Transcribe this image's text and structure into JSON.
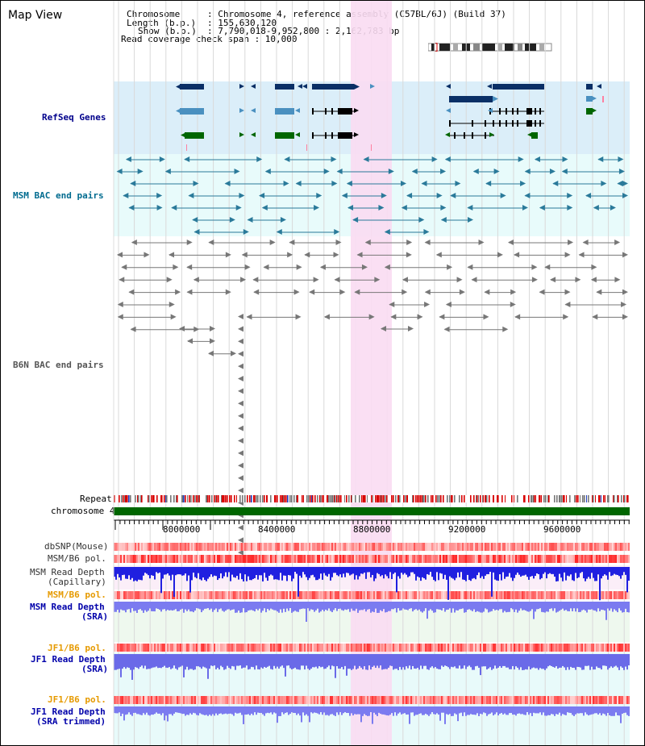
{
  "title": "Map View",
  "header": {
    "chromosome_label": "Chromosome",
    "chromosome_value": ": Chromosome 4, reference assembly (C57BL/6J) (Build 37)",
    "length_label": "Length (b.p.)",
    "length_value": ": 155,630,120",
    "show_label": "Show (b.p.)",
    "show_value": ": 7,790,018-9,952,800 : 2,162,783 bp",
    "coverage_label": "Read coverage check span : 10,000"
  },
  "tracks": {
    "refseq": "RefSeq Genes",
    "msm_bac": "MSM BAC end pairs",
    "b6n_bac": "B6N BAC end pairs",
    "repeat": "Repeat",
    "chromosome": "chromosome 4",
    "dbsnp": "dbSNP(Mouse)",
    "msm_b6_pol": "MSM/B6 pol.",
    "msm_depth_cap_1": "MSM Read Depth",
    "msm_depth_cap_2": "(Capillary)",
    "msm_b6_pol_sra": "MSM/B6 pol.",
    "msm_depth_sra_1": "MSM Read Depth",
    "msm_depth_sra_2": "(SRA)",
    "jf1_b6_pol_sra": "JF1/B6 pol.",
    "jf1_depth_sra_1": "JF1 Read Depth",
    "jf1_depth_sra_2": "(SRA)",
    "jf1_b6_pol_trim": "JF1/B6 pol.",
    "jf1_depth_trim_1": "JF1 Read Depth",
    "jf1_depth_trim_2": "(SRA trimmed)"
  },
  "axis": {
    "ticks": [
      "8000000",
      "8400000",
      "8800000",
      "9200000",
      "9600000"
    ]
  },
  "colors": {
    "refseq_bg": "#dbeef9",
    "msm_bg": "#e8fbfb",
    "highlight": "#f9dcf2",
    "refseq_label": "#00008b",
    "msm_label": "#006b8f",
    "b6n_label": "#555555",
    "pol_label": "#e69a00",
    "depth_label": "#0000aa",
    "chrom_bar": "#006600",
    "gene_dark": "#0a2f66",
    "gene_mid": "#4a90c0",
    "gene_green": "#006600",
    "bac_msm": "#2a7a9a",
    "bac_b6n": "#777777"
  }
}
